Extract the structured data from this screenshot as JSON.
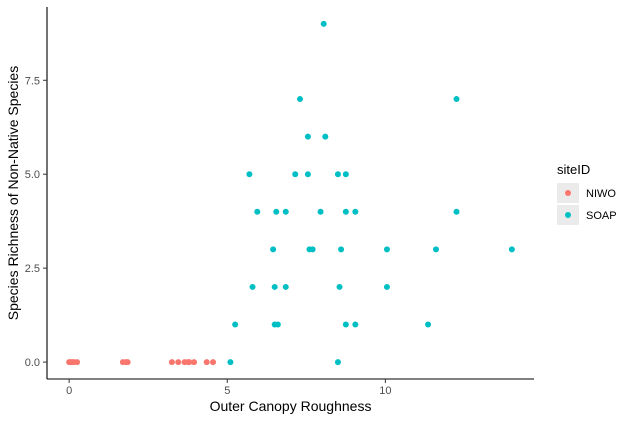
{
  "chart_data": {
    "type": "scatter",
    "title": "",
    "xlabel": "Outer Canopy Roughness",
    "ylabel": "Species Richness of Non-Native Species",
    "xlim": [
      -0.7,
      14.7
    ],
    "ylim": [
      -0.45,
      9.45
    ],
    "xticks": [
      0,
      5,
      10
    ],
    "yticks": [
      0.0,
      2.5,
      5.0,
      7.5
    ],
    "ytick_labels": [
      "0.0",
      "2.5",
      "5.0",
      "7.5"
    ],
    "grid": false,
    "legend": {
      "title": "siteID",
      "position": "right"
    },
    "series": [
      {
        "name": "NIWO",
        "color": "#F8766D",
        "points": [
          [
            0.0,
            0
          ],
          [
            0.05,
            0
          ],
          [
            0.1,
            0
          ],
          [
            0.15,
            0
          ],
          [
            0.25,
            0
          ],
          [
            1.7,
            0
          ],
          [
            1.8,
            0
          ],
          [
            1.85,
            0
          ],
          [
            3.25,
            0
          ],
          [
            3.45,
            0
          ],
          [
            3.65,
            0
          ],
          [
            3.75,
            0
          ],
          [
            3.8,
            0
          ],
          [
            3.95,
            0
          ],
          [
            4.35,
            0
          ],
          [
            4.55,
            0
          ]
        ]
      },
      {
        "name": "SOAP",
        "color": "#00BFC4",
        "points": [
          [
            5.1,
            0
          ],
          [
            5.25,
            1
          ],
          [
            5.7,
            5
          ],
          [
            5.8,
            2
          ],
          [
            5.95,
            4
          ],
          [
            6.45,
            3
          ],
          [
            6.5,
            2
          ],
          [
            6.5,
            1
          ],
          [
            6.55,
            4
          ],
          [
            6.6,
            1
          ],
          [
            6.85,
            2
          ],
          [
            6.85,
            4
          ],
          [
            7.15,
            5
          ],
          [
            7.3,
            7
          ],
          [
            7.55,
            6
          ],
          [
            7.55,
            5
          ],
          [
            7.6,
            3
          ],
          [
            7.7,
            3
          ],
          [
            7.95,
            4
          ],
          [
            8.05,
            9
          ],
          [
            8.1,
            6
          ],
          [
            8.5,
            0
          ],
          [
            8.5,
            5
          ],
          [
            8.55,
            2
          ],
          [
            8.6,
            3
          ],
          [
            8.75,
            5
          ],
          [
            8.75,
            4
          ],
          [
            8.75,
            1
          ],
          [
            9.05,
            4
          ],
          [
            9.05,
            1
          ],
          [
            10.05,
            3
          ],
          [
            10.05,
            2
          ],
          [
            11.35,
            1
          ],
          [
            11.6,
            3
          ],
          [
            12.25,
            7
          ],
          [
            12.25,
            4
          ],
          [
            14.0,
            3
          ]
        ]
      }
    ]
  }
}
